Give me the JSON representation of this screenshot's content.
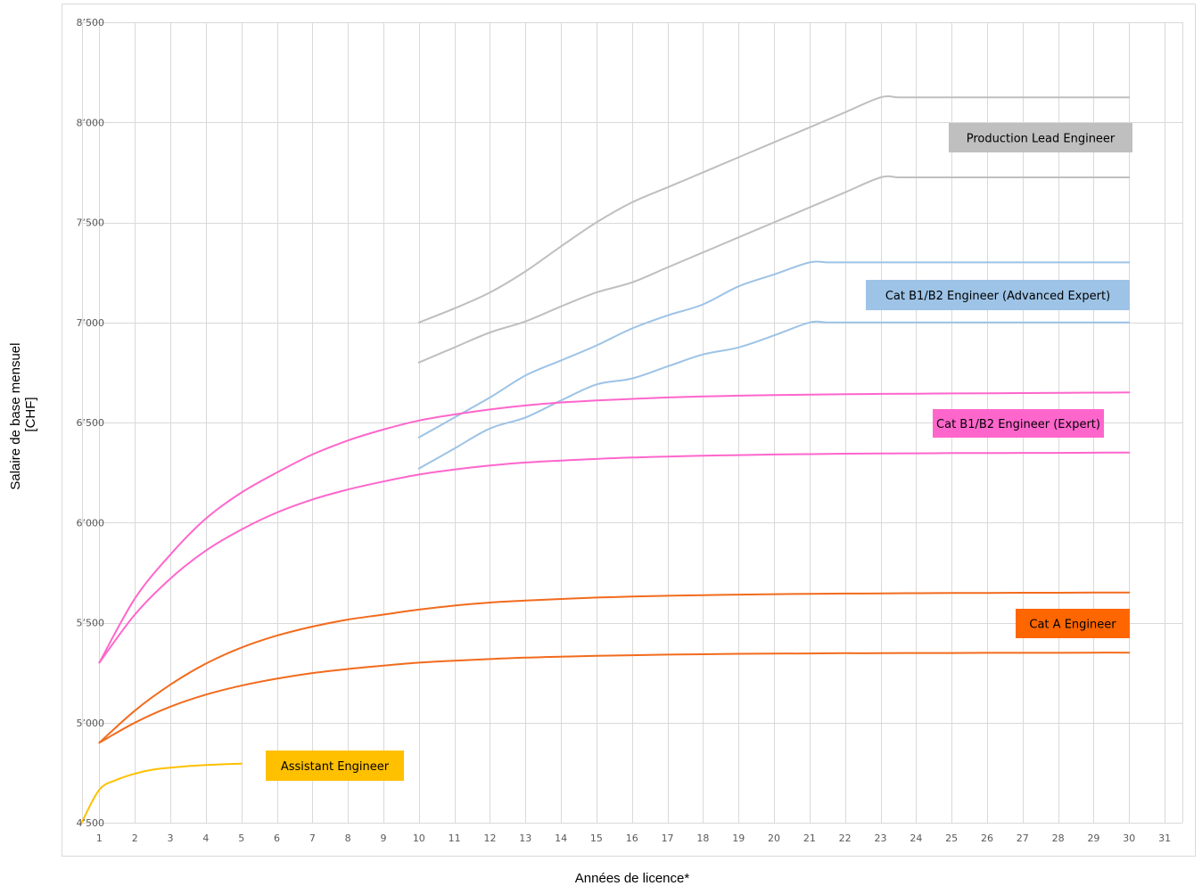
{
  "chart_data": {
    "type": "line",
    "title": "",
    "xlabel": "Années de licence*",
    "ylabel": [
      "Salaire de base mensuel",
      "[CHF]"
    ],
    "xlim": [
      1,
      31
    ],
    "ylim": [
      4500,
      8500
    ],
    "x_ticks": [
      1,
      2,
      3,
      4,
      5,
      6,
      7,
      8,
      9,
      10,
      11,
      12,
      13,
      14,
      15,
      16,
      17,
      18,
      19,
      20,
      21,
      22,
      23,
      24,
      25,
      26,
      27,
      28,
      29,
      30,
      31
    ],
    "y_ticks": [
      {
        "value": 4500,
        "label": "4’500"
      },
      {
        "value": 5000,
        "label": "5’000"
      },
      {
        "value": 5500,
        "label": "5’500"
      },
      {
        "value": 6000,
        "label": "6’000"
      },
      {
        "value": 6500,
        "label": "6’500"
      },
      {
        "value": 7000,
        "label": "7’000"
      },
      {
        "value": 7500,
        "label": "7’500"
      },
      {
        "value": 8000,
        "label": "8’000"
      },
      {
        "value": 8500,
        "label": "8’500"
      }
    ],
    "grid": true,
    "series": [
      {
        "group": "Production Lead Engineer",
        "color": "#bfbfbf",
        "x": [
          10,
          11,
          12,
          13,
          14,
          15,
          16,
          17,
          18,
          19,
          20,
          21,
          22,
          23,
          23.5,
          24,
          25,
          26,
          27,
          28,
          29,
          30
        ],
        "values": [
          7000,
          7070,
          7150,
          7255,
          7380,
          7500,
          7600,
          7675,
          7750,
          7825,
          7900,
          7975,
          8050,
          8125,
          8125,
          8125,
          8125,
          8125,
          8125,
          8125,
          8125,
          8125
        ]
      },
      {
        "group": "Production Lead Engineer",
        "color": "#bfbfbf",
        "x": [
          10,
          11,
          12,
          13,
          14,
          15,
          16,
          17,
          18,
          19,
          20,
          21,
          22,
          23,
          23.5,
          24,
          25,
          26,
          27,
          28,
          29,
          30
        ],
        "values": [
          6800,
          6875,
          6950,
          7005,
          7080,
          7150,
          7200,
          7275,
          7350,
          7425,
          7500,
          7575,
          7650,
          7725,
          7725,
          7725,
          7725,
          7725,
          7725,
          7725,
          7725,
          7725
        ]
      },
      {
        "group": "Cat B1/B2 Engineer (Advanced Expert)",
        "color": "#9dc3e6",
        "x": [
          10,
          11,
          12,
          13,
          14,
          15,
          16,
          17,
          18,
          19,
          20,
          21,
          21.5,
          22,
          23,
          24,
          25,
          26,
          27,
          28,
          29,
          30
        ],
        "values": [
          6425,
          6525,
          6625,
          6735,
          6810,
          6885,
          6970,
          7035,
          7090,
          7180,
          7240,
          7300,
          7300,
          7300,
          7300,
          7300,
          7300,
          7300,
          7300,
          7300,
          7300,
          7300
        ]
      },
      {
        "group": "Cat B1/B2 Engineer (Advanced Expert)",
        "color": "#9dc3e6",
        "x": [
          10,
          11,
          12,
          13,
          14,
          15,
          16,
          17,
          18,
          19,
          20,
          21,
          21.5,
          22,
          23,
          24,
          25,
          26,
          27,
          28,
          29,
          30
        ],
        "values": [
          6270,
          6370,
          6470,
          6525,
          6610,
          6690,
          6720,
          6780,
          6840,
          6875,
          6935,
          7000,
          7000,
          7000,
          7000,
          7000,
          7000,
          7000,
          7000,
          7000,
          7000,
          7000
        ]
      },
      {
        "group": "Cat B1/B2 Engineer (Expert)",
        "color": "#ff66cc",
        "x": [
          1,
          2,
          3,
          4,
          5,
          6,
          7,
          8,
          9,
          10,
          11,
          12,
          13,
          14,
          15,
          16,
          17,
          18,
          19,
          20,
          21,
          22,
          23,
          24,
          25,
          26,
          27,
          28,
          29,
          30
        ],
        "values": [
          5300,
          5620,
          5840,
          6020,
          6150,
          6250,
          6340,
          6410,
          6465,
          6510,
          6540,
          6565,
          6585,
          6600,
          6610,
          6618,
          6625,
          6630,
          6634,
          6637,
          6639,
          6641,
          6643,
          6644,
          6645,
          6646,
          6647,
          6648,
          6649,
          6650
        ]
      },
      {
        "group": "Cat B1/B2 Engineer (Expert)",
        "color": "#ff66cc",
        "x": [
          1,
          2,
          3,
          4,
          5,
          6,
          7,
          8,
          9,
          10,
          11,
          12,
          13,
          14,
          15,
          16,
          17,
          18,
          19,
          20,
          21,
          22,
          23,
          24,
          25,
          26,
          27,
          28,
          29,
          30
        ],
        "values": [
          5300,
          5540,
          5720,
          5860,
          5965,
          6050,
          6115,
          6165,
          6205,
          6240,
          6265,
          6285,
          6300,
          6310,
          6318,
          6325,
          6330,
          6334,
          6337,
          6340,
          6342,
          6344,
          6345,
          6346,
          6347,
          6347,
          6348,
          6348,
          6349,
          6350
        ]
      },
      {
        "group": "Cat A Engineer",
        "color": "#f26b1d",
        "x": [
          1,
          2,
          3,
          4,
          5,
          6,
          7,
          8,
          9,
          10,
          11,
          12,
          13,
          14,
          15,
          16,
          17,
          18,
          19,
          20,
          21,
          22,
          23,
          24,
          25,
          26,
          27,
          28,
          29,
          30
        ],
        "values": [
          4900,
          5060,
          5190,
          5295,
          5375,
          5435,
          5480,
          5515,
          5540,
          5565,
          5585,
          5600,
          5610,
          5618,
          5625,
          5630,
          5634,
          5637,
          5640,
          5642,
          5644,
          5645,
          5646,
          5647,
          5648,
          5648,
          5649,
          5649,
          5650,
          5650
        ]
      },
      {
        "group": "Cat A Engineer",
        "color": "#f26b1d",
        "x": [
          1,
          2,
          3,
          4,
          5,
          6,
          7,
          8,
          9,
          10,
          11,
          12,
          13,
          14,
          15,
          16,
          17,
          18,
          19,
          20,
          21,
          22,
          23,
          24,
          25,
          26,
          27,
          28,
          29,
          30
        ],
        "values": [
          4900,
          5000,
          5080,
          5140,
          5185,
          5220,
          5248,
          5268,
          5285,
          5300,
          5310,
          5318,
          5325,
          5330,
          5334,
          5337,
          5340,
          5342,
          5344,
          5345,
          5346,
          5347,
          5347,
          5348,
          5348,
          5349,
          5349,
          5349,
          5350,
          5350
        ]
      },
      {
        "group": "Assistant Engineer",
        "color": "#ffc000",
        "x": [
          0.5,
          1,
          1.5,
          2,
          2.5,
          3,
          3.5,
          4,
          4.5,
          5
        ],
        "values": [
          4500,
          4665,
          4715,
          4745,
          4765,
          4775,
          4783,
          4788,
          4792,
          4795
        ]
      }
    ],
    "labels": [
      {
        "text": "Production Lead Engineer",
        "bg": "#bfbfbf",
        "fg": "#000000",
        "near": "top-right"
      },
      {
        "text": "Cat B1/B2 Engineer (Advanced Expert)",
        "bg": "#9dc3e6",
        "fg": "#000000",
        "near": "right"
      },
      {
        "text": "Cat B1/B2 Engineer (Expert)",
        "bg": "#ff66cc",
        "fg": "#000000",
        "near": "right"
      },
      {
        "text": "Cat A Engineer",
        "bg": "#ff6600",
        "fg": "#000000",
        "near": "right"
      },
      {
        "text": "Assistant Engineer",
        "bg": "#ffc000",
        "fg": "#000000",
        "near": "bottom-left"
      }
    ]
  }
}
